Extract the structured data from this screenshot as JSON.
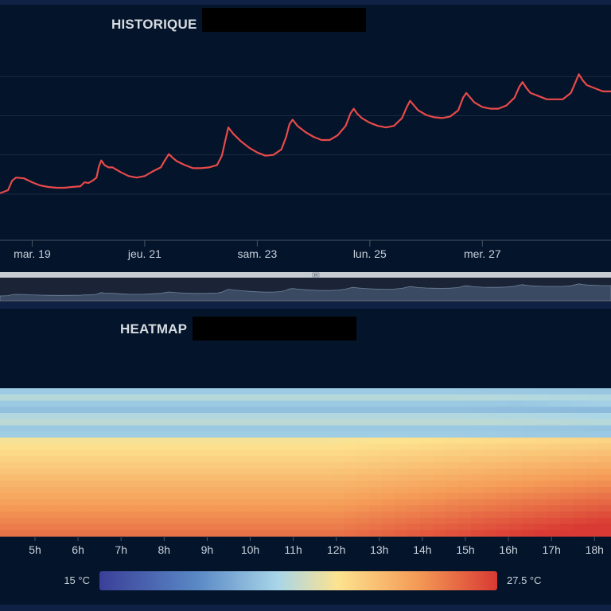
{
  "historique": {
    "title": "HISTORIQUE",
    "chart_data": {
      "type": "line",
      "series": [
        {
          "color": "#e84a4a",
          "points": [
            [
              0,
              0.0
            ],
            [
              1,
              0.04
            ],
            [
              1.5,
              0.16
            ],
            [
              2,
              0.2
            ],
            [
              3,
              0.19
            ],
            [
              4,
              0.14
            ],
            [
              5,
              0.1
            ],
            [
              6,
              0.08
            ],
            [
              7,
              0.07
            ],
            [
              8,
              0.07
            ],
            [
              9,
              0.08
            ],
            [
              10,
              0.09
            ],
            [
              10.5,
              0.14
            ],
            [
              11,
              0.13
            ],
            [
              11.5,
              0.16
            ],
            [
              12,
              0.2
            ],
            [
              12.3,
              0.34
            ],
            [
              12.6,
              0.42
            ],
            [
              13,
              0.36
            ],
            [
              13.5,
              0.33
            ],
            [
              14,
              0.33
            ],
            [
              15,
              0.27
            ],
            [
              16,
              0.22
            ],
            [
              17,
              0.2
            ],
            [
              18,
              0.22
            ],
            [
              19,
              0.28
            ],
            [
              20,
              0.33
            ],
            [
              20.5,
              0.42
            ],
            [
              21,
              0.5
            ],
            [
              21.5,
              0.45
            ],
            [
              22,
              0.41
            ],
            [
              23,
              0.36
            ],
            [
              24,
              0.32
            ],
            [
              25,
              0.32
            ],
            [
              26,
              0.33
            ],
            [
              27,
              0.36
            ],
            [
              27.6,
              0.48
            ],
            [
              28,
              0.66
            ],
            [
              28.4,
              0.84
            ],
            [
              29,
              0.76
            ],
            [
              30,
              0.66
            ],
            [
              31,
              0.58
            ],
            [
              32,
              0.52
            ],
            [
              33,
              0.48
            ],
            [
              34,
              0.49
            ],
            [
              35,
              0.56
            ],
            [
              35.6,
              0.72
            ],
            [
              36,
              0.88
            ],
            [
              36.4,
              0.94
            ],
            [
              37,
              0.86
            ],
            [
              38,
              0.78
            ],
            [
              39,
              0.72
            ],
            [
              40,
              0.68
            ],
            [
              41,
              0.68
            ],
            [
              42,
              0.74
            ],
            [
              43,
              0.86
            ],
            [
              43.6,
              1.02
            ],
            [
              44,
              1.08
            ],
            [
              44.4,
              1.02
            ],
            [
              45,
              0.96
            ],
            [
              46,
              0.9
            ],
            [
              47,
              0.86
            ],
            [
              48,
              0.84
            ],
            [
              49,
              0.86
            ],
            [
              50,
              0.96
            ],
            [
              50.6,
              1.1
            ],
            [
              51,
              1.18
            ],
            [
              51.5,
              1.12
            ],
            [
              52,
              1.06
            ],
            [
              53,
              1.0
            ],
            [
              54,
              0.97
            ],
            [
              55,
              0.96
            ],
            [
              56,
              0.98
            ],
            [
              57,
              1.06
            ],
            [
              57.6,
              1.22
            ],
            [
              58,
              1.28
            ],
            [
              58.5,
              1.22
            ],
            [
              59,
              1.16
            ],
            [
              60,
              1.1
            ],
            [
              61,
              1.08
            ],
            [
              62,
              1.08
            ],
            [
              63,
              1.12
            ],
            [
              64,
              1.22
            ],
            [
              64.6,
              1.36
            ],
            [
              65,
              1.42
            ],
            [
              65.5,
              1.34
            ],
            [
              66,
              1.28
            ],
            [
              67,
              1.24
            ],
            [
              68,
              1.2
            ],
            [
              69,
              1.2
            ],
            [
              70,
              1.2
            ],
            [
              71,
              1.28
            ],
            [
              71.6,
              1.42
            ],
            [
              72,
              1.52
            ],
            [
              72.5,
              1.44
            ],
            [
              73,
              1.38
            ],
            [
              74,
              1.34
            ],
            [
              75,
              1.3
            ],
            [
              76,
              1.3
            ]
          ]
        }
      ],
      "x_ticks": [
        {
          "label": "mar. 19",
          "x": 4
        },
        {
          "label": "jeu. 21",
          "x": 18
        },
        {
          "label": "sam. 23",
          "x": 32
        },
        {
          "label": "lun. 25",
          "x": 46
        },
        {
          "label": "mer. 27",
          "x": 60
        }
      ],
      "xlim": [
        0,
        76
      ],
      "ylim": [
        -0.6,
        2.0
      ],
      "grid": true
    }
  },
  "heatmap": {
    "title": "HEATMAP",
    "chart_data": {
      "type": "heatmap",
      "x_ticks": [
        "5h",
        "6h",
        "7h",
        "8h",
        "9h",
        "10h",
        "11h",
        "12h",
        "13h",
        "14h",
        "15h",
        "16h",
        "17h",
        "18h"
      ],
      "legend_min_label": "15 °C",
      "legend_max_label": "27.5 °C",
      "colormap": [
        "#3a3f99",
        "#5b8ac6",
        "#a9d6e8",
        "#fde38f",
        "#f49a56",
        "#d93a33"
      ]
    }
  }
}
